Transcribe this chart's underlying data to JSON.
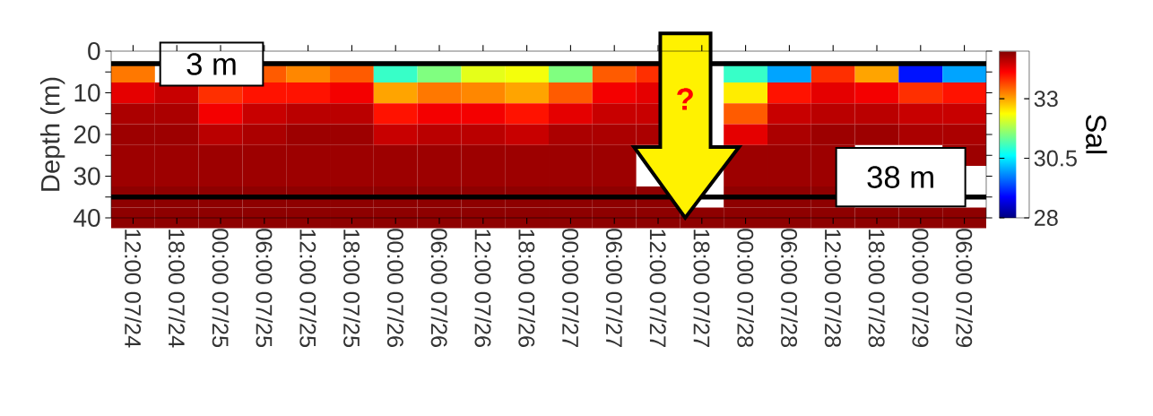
{
  "chart_data": {
    "type": "heatmap",
    "ylabel": "Depth (m)",
    "clabel": "Sal",
    "categories": [
      "12:00 07/24",
      "18:00 07/24",
      "00:00 07/25",
      "06:00 07/25",
      "12:00 07/25",
      "18:00 07/25",
      "00:00 07/26",
      "06:00 07/26",
      "12:00 07/26",
      "18:00 07/26",
      "00:00 07/27",
      "06:00 07/27",
      "12:00 07/27",
      "18:00 07/27",
      "00:00 07/28",
      "06:00 07/28",
      "12:00 07/28",
      "18:00 07/28",
      "00:00 07/29",
      "06:00 07/29"
    ],
    "y_categories": [
      "0",
      null,
      "10",
      null,
      "20",
      null,
      "30",
      null,
      "40"
    ],
    "cells": [
      [
        null,
        null,
        null,
        null,
        null,
        null,
        null,
        null,
        null,
        null,
        null,
        null,
        null,
        null,
        null,
        null,
        null,
        null,
        null,
        null
      ],
      [
        33.3,
        null,
        null,
        33.5,
        33.2,
        33.5,
        31.0,
        31.5,
        32.2,
        32.3,
        31.5,
        33.5,
        33.8,
        null,
        31.0,
        30.0,
        33.8,
        33.0,
        29.0,
        30.0
      ],
      [
        34.3,
        34.5,
        33.8,
        34.0,
        34.0,
        34.2,
        33.0,
        33.3,
        33.2,
        33.0,
        33.5,
        34.2,
        34.3,
        null,
        32.5,
        34.0,
        34.3,
        34.2,
        33.8,
        34.0
      ],
      [
        34.7,
        34.7,
        34.2,
        34.5,
        34.6,
        34.6,
        34.0,
        34.2,
        34.2,
        34.0,
        34.3,
        34.5,
        34.5,
        null,
        33.5,
        34.5,
        34.6,
        34.6,
        34.5,
        34.5
      ],
      [
        34.8,
        34.8,
        34.6,
        34.7,
        34.8,
        34.8,
        34.5,
        34.6,
        34.6,
        34.5,
        34.7,
        34.7,
        34.7,
        null,
        34.3,
        34.7,
        34.8,
        34.8,
        34.7,
        34.7
      ],
      [
        34.8,
        34.8,
        34.8,
        34.8,
        34.8,
        34.8,
        34.8,
        34.8,
        34.8,
        34.8,
        34.8,
        34.8,
        null,
        null,
        34.8,
        34.8,
        34.8,
        null,
        null,
        34.8
      ],
      [
        34.8,
        34.8,
        34.8,
        34.8,
        34.8,
        34.8,
        34.8,
        34.8,
        34.8,
        34.8,
        34.8,
        34.8,
        null,
        null,
        34.8,
        34.8,
        34.8,
        null,
        null,
        null
      ],
      [
        34.9,
        34.9,
        34.9,
        34.9,
        34.9,
        34.9,
        34.9,
        34.9,
        34.9,
        34.9,
        34.9,
        34.9,
        34.9,
        null,
        34.9,
        34.9,
        34.9,
        null,
        null,
        null
      ],
      [
        34.9,
        34.9,
        34.9,
        34.9,
        34.9,
        34.9,
        34.9,
        34.9,
        34.9,
        34.9,
        34.9,
        34.9,
        34.9,
        34.9,
        34.9,
        34.9,
        34.9,
        34.9,
        34.9,
        34.9
      ]
    ],
    "clim": [
      28,
      35
    ],
    "cticks": [
      28,
      30.5,
      33
    ],
    "annotations": [
      "3 m",
      "38 m",
      "?"
    ]
  }
}
